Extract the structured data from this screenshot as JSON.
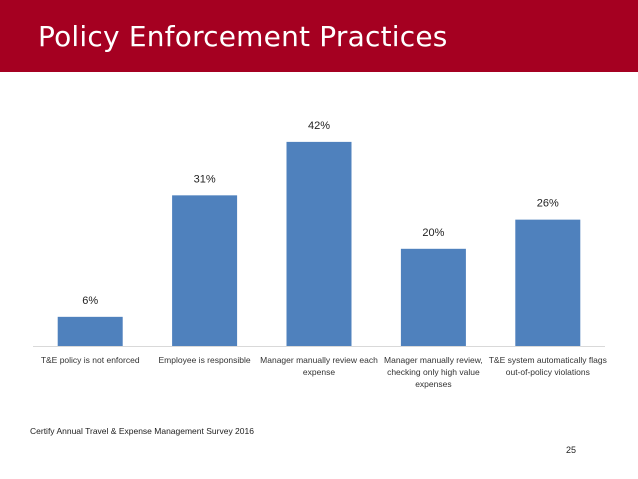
{
  "header": {
    "title": "Policy Enforcement Practices"
  },
  "chart_data": {
    "type": "bar",
    "categories": [
      "T&E policy is not enforced",
      "Employee is responsible",
      "Manager manually review each expense",
      "Manager manually review, checking only high value expenses",
      "T&E system automatically flags out-of-policy violations"
    ],
    "values": [
      6,
      31,
      42,
      20,
      26
    ],
    "value_labels": [
      "6%",
      "31%",
      "42%",
      "20%",
      "26%"
    ],
    "title": "",
    "xlabel": "",
    "ylabel": "",
    "ylim": [
      0,
      45
    ],
    "grid": false,
    "legend": "none",
    "bar_color": "#4f81bd",
    "axis_color": "#d9d9d9"
  },
  "footer": {
    "source": "Certify Annual Travel & Expense Management Survey 2016",
    "page_number": "25"
  }
}
